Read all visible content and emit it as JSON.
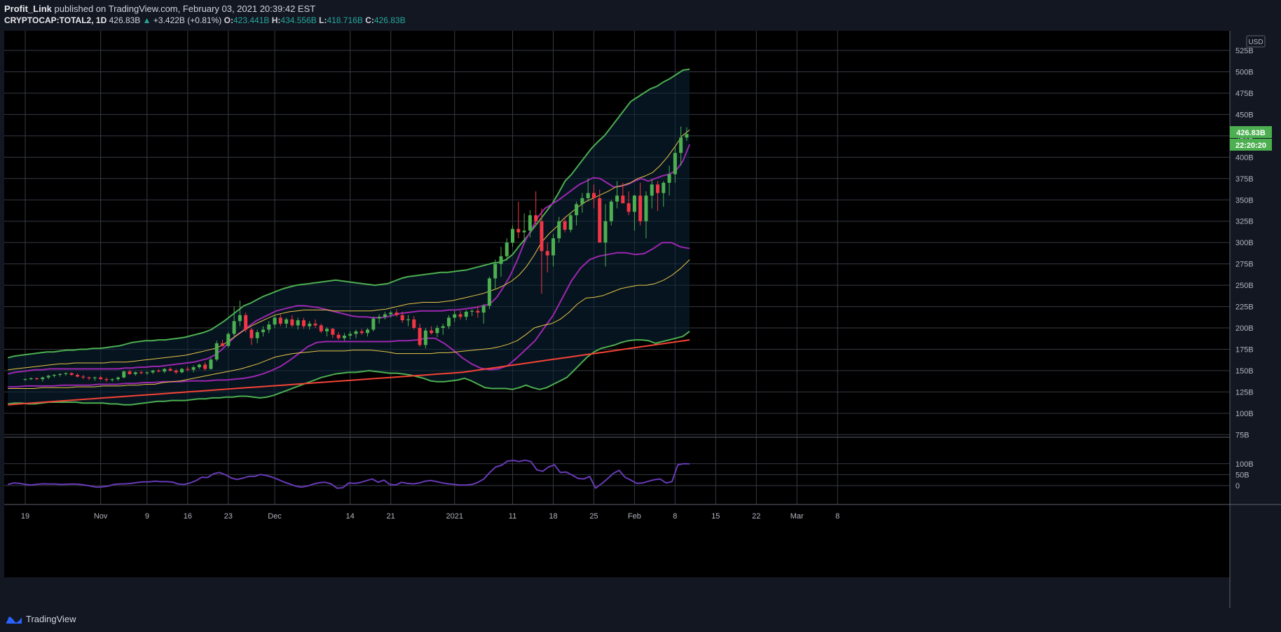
{
  "header": {
    "author": "Profit_Link",
    "published_text": "published on TradingView.com, February 03, 2021 20:39:42 EST",
    "symbol": "CRYPTOCAP:TOTAL2, 1D",
    "last": "426.83B",
    "change": "+3.422B (+0.81%)",
    "open_label": "O:",
    "open": "423.441B",
    "high_label": "H:",
    "high": "434.556B",
    "low_label": "L:",
    "low": "418.716B",
    "close_label": "C:",
    "close": "426.83B"
  },
  "currency_badge": "USD",
  "price_label": "426.83B",
  "countdown_label": "22:20:20",
  "footer": {
    "brand": "TradingView",
    "logo_icon": "tradingview-logo-icon"
  },
  "colors": {
    "bg": "#000000",
    "grid": "#363a45",
    "up": "#4caf50",
    "down": "#f23645",
    "bb_outer": "#4caf50",
    "bb_mid": "#9c27b0",
    "bb_inner": "#e8c547",
    "ma_long": "#f44336",
    "oscillator": "#673ab7",
    "tag": "#4caf50"
  },
  "chart_data": {
    "type": "candlestick",
    "y_axis": {
      "ticks": [
        "525B",
        "500B",
        "475B",
        "450B",
        "425B",
        "400B",
        "375B",
        "350B",
        "325B",
        "300B",
        "275B",
        "250B",
        "225B",
        "200B",
        "175B",
        "150B",
        "125B",
        "100B",
        "75B"
      ],
      "range": [
        72,
        548
      ]
    },
    "x_axis": {
      "ticks": [
        {
          "label": "19",
          "day": 0
        },
        {
          "label": "Nov",
          "day": 13
        },
        {
          "label": "9",
          "day": 21
        },
        {
          "label": "16",
          "day": 28
        },
        {
          "label": "23",
          "day": 35
        },
        {
          "label": "Dec",
          "day": 43
        },
        {
          "label": "14",
          "day": 56
        },
        {
          "label": "21",
          "day": 63
        },
        {
          "label": "2021",
          "day": 74
        },
        {
          "label": "11",
          "day": 84
        },
        {
          "label": "18",
          "day": 91
        },
        {
          "label": "25",
          "day": 98
        },
        {
          "label": "Feb",
          "day": 105
        },
        {
          "label": "8",
          "day": 112
        },
        {
          "label": "15",
          "day": 119
        },
        {
          "label": "22",
          "day": 126
        },
        {
          "label": "Mar",
          "day": 133
        },
        {
          "label": "8",
          "day": 140
        }
      ]
    },
    "candles": [
      [
        140,
        141,
        138,
        140
      ],
      [
        140,
        142,
        139,
        141
      ],
      [
        141,
        142,
        139,
        140
      ],
      [
        140,
        143,
        137,
        142
      ],
      [
        142,
        145,
        140,
        144
      ],
      [
        144,
        146,
        142,
        145
      ],
      [
        145,
        147,
        143,
        146
      ],
      [
        146,
        148,
        144,
        147
      ],
      [
        147,
        148,
        144,
        145
      ],
      [
        145,
        147,
        142,
        143
      ],
      [
        143,
        145,
        140,
        142
      ],
      [
        142,
        143,
        139,
        141
      ],
      [
        141,
        143,
        138,
        142
      ],
      [
        142,
        144,
        139,
        140
      ],
      [
        140,
        142,
        137,
        139
      ],
      [
        139,
        141,
        137,
        140
      ],
      [
        140,
        143,
        138,
        142
      ],
      [
        142,
        150,
        141,
        149
      ],
      [
        149,
        151,
        145,
        146
      ],
      [
        146,
        149,
        144,
        148
      ],
      [
        148,
        150,
        146,
        147
      ],
      [
        147,
        149,
        145,
        148
      ],
      [
        148,
        151,
        146,
        150
      ],
      [
        150,
        152,
        148,
        149
      ],
      [
        149,
        153,
        147,
        152
      ],
      [
        152,
        154,
        149,
        150
      ],
      [
        150,
        152,
        146,
        148
      ],
      [
        148,
        153,
        147,
        152
      ],
      [
        152,
        155,
        149,
        151
      ],
      [
        151,
        156,
        148,
        154
      ],
      [
        154,
        158,
        152,
        157
      ],
      [
        157,
        160,
        150,
        152
      ],
      [
        152,
        165,
        151,
        163
      ],
      [
        163,
        185,
        161,
        182
      ],
      [
        182,
        186,
        178,
        179
      ],
      [
        179,
        195,
        177,
        193
      ],
      [
        193,
        225,
        188,
        208
      ],
      [
        208,
        232,
        202,
        215
      ],
      [
        215,
        218,
        195,
        198
      ],
      [
        198,
        200,
        180,
        188
      ],
      [
        188,
        198,
        182,
        195
      ],
      [
        195,
        202,
        190,
        198
      ],
      [
        198,
        208,
        194,
        204
      ],
      [
        204,
        215,
        200,
        212
      ],
      [
        212,
        216,
        202,
        205
      ],
      [
        205,
        212,
        200,
        210
      ],
      [
        210,
        215,
        201,
        203
      ],
      [
        203,
        212,
        198,
        209
      ],
      [
        209,
        212,
        199,
        202
      ],
      [
        202,
        208,
        198,
        205
      ],
      [
        205,
        210,
        200,
        203
      ],
      [
        203,
        205,
        194,
        196
      ],
      [
        196,
        201,
        190,
        199
      ],
      [
        199,
        200,
        188,
        192
      ],
      [
        192,
        195,
        186,
        188
      ],
      [
        188,
        194,
        185,
        191
      ],
      [
        191,
        196,
        187,
        193
      ],
      [
        193,
        198,
        188,
        196
      ],
      [
        196,
        199,
        192,
        194
      ],
      [
        194,
        200,
        190,
        198
      ],
      [
        198,
        213,
        196,
        211
      ],
      [
        211,
        216,
        205,
        213
      ],
      [
        213,
        219,
        210,
        216
      ],
      [
        216,
        220,
        212,
        218
      ],
      [
        218,
        222,
        213,
        215
      ],
      [
        215,
        219,
        206,
        209
      ],
      [
        209,
        215,
        202,
        210
      ],
      [
        210,
        214,
        198,
        200
      ],
      [
        200,
        205,
        178,
        180
      ],
      [
        180,
        200,
        176,
        197
      ],
      [
        197,
        202,
        192,
        194
      ],
      [
        194,
        203,
        189,
        200
      ],
      [
        200,
        205,
        192,
        202
      ],
      [
        202,
        215,
        199,
        212
      ],
      [
        212,
        220,
        207,
        216
      ],
      [
        216,
        220,
        210,
        213
      ],
      [
        213,
        221,
        209,
        219
      ],
      [
        219,
        222,
        214,
        220
      ],
      [
        220,
        226,
        212,
        218
      ],
      [
        218,
        228,
        205,
        226
      ],
      [
        226,
        260,
        222,
        258
      ],
      [
        258,
        280,
        245,
        275
      ],
      [
        275,
        295,
        260,
        284
      ],
      [
        284,
        305,
        279,
        300
      ],
      [
        300,
        320,
        295,
        316
      ],
      [
        316,
        348,
        305,
        312
      ],
      [
        312,
        334,
        300,
        314
      ],
      [
        314,
        338,
        306,
        332
      ],
      [
        332,
        360,
        320,
        325
      ],
      [
        325,
        340,
        240,
        290
      ],
      [
        290,
        300,
        265,
        285
      ],
      [
        285,
        310,
        272,
        305
      ],
      [
        305,
        330,
        300,
        325
      ],
      [
        325,
        330,
        312,
        315
      ],
      [
        315,
        335,
        312,
        332
      ],
      [
        332,
        348,
        320,
        345
      ],
      [
        345,
        358,
        335,
        352
      ],
      [
        352,
        375,
        348,
        358
      ],
      [
        358,
        368,
        340,
        352
      ],
      [
        352,
        362,
        300,
        300
      ],
      [
        300,
        345,
        272,
        325
      ],
      [
        325,
        350,
        320,
        348
      ],
      [
        348,
        372,
        340,
        355
      ],
      [
        355,
        370,
        346,
        346
      ],
      [
        346,
        360,
        332,
        336
      ],
      [
        336,
        356,
        314,
        355
      ],
      [
        355,
        370,
        320,
        325
      ],
      [
        325,
        360,
        305,
        355
      ],
      [
        355,
        374,
        340,
        368
      ],
      [
        368,
        372,
        337,
        358
      ],
      [
        358,
        372,
        342,
        370
      ],
      [
        370,
        390,
        355,
        380
      ],
      [
        380,
        412,
        370,
        405
      ],
      [
        405,
        436,
        390,
        423
      ],
      [
        423,
        435,
        419,
        427
      ]
    ],
    "bb_outer_upper": [
      165,
      167,
      168,
      169,
      170,
      171,
      172,
      172,
      173,
      174,
      174,
      175,
      175,
      176,
      176,
      177,
      178,
      179,
      181,
      183,
      184,
      185,
      185,
      186,
      186,
      187,
      188,
      189,
      191,
      193,
      195,
      198,
      203,
      208,
      214,
      220,
      226,
      229,
      233,
      237,
      240,
      243,
      246,
      248,
      250,
      251,
      252,
      253,
      254,
      255,
      256,
      255,
      254,
      253,
      252,
      251,
      250,
      251,
      252,
      255,
      258,
      260,
      261,
      262,
      263,
      264,
      265,
      265,
      266,
      267,
      268,
      270,
      272,
      274,
      276,
      277,
      280,
      286,
      296,
      305,
      315,
      325,
      335,
      345,
      358,
      372,
      380,
      390,
      400,
      410,
      418,
      425,
      435,
      445,
      455,
      465,
      470,
      475,
      480,
      483,
      488,
      492,
      497,
      502,
      503
    ],
    "bb_outer_lower": [
      111,
      112,
      112,
      111,
      111,
      112,
      113,
      113,
      113,
      113,
      113,
      112,
      112,
      112,
      112,
      111,
      111,
      110,
      110,
      111,
      112,
      113,
      114,
      114,
      115,
      115,
      115,
      116,
      117,
      117,
      118,
      118,
      119,
      119,
      120,
      120,
      119,
      118,
      119,
      121,
      124,
      127,
      130,
      133,
      136,
      139,
      142,
      144,
      146,
      147,
      148,
      148,
      149,
      150,
      149,
      148,
      147,
      147,
      146,
      145,
      143,
      141,
      138,
      137,
      137,
      138,
      139,
      141,
      138,
      134,
      130,
      129,
      129,
      129,
      128,
      130,
      133,
      130,
      128,
      130,
      134,
      138,
      142,
      150,
      158,
      166,
      172,
      176,
      178,
      180,
      183,
      185,
      186,
      186,
      185,
      182,
      184,
      186,
      188,
      190,
      196
    ],
    "bb_mid_upper": [
      146,
      148,
      149,
      150,
      151,
      151,
      152,
      152,
      152,
      152,
      152,
      152,
      152,
      152,
      152,
      152,
      152,
      153,
      153,
      154,
      154,
      155,
      155,
      156,
      157,
      158,
      159,
      160,
      162,
      164,
      168,
      174,
      182,
      190,
      196,
      202,
      208,
      212,
      216,
      220,
      222,
      224,
      226,
      226,
      225,
      224,
      222,
      220,
      218,
      216,
      214,
      213,
      213,
      212,
      212,
      213,
      215,
      217,
      218,
      219,
      220,
      220,
      220,
      220,
      221,
      221,
      222,
      223,
      224,
      226,
      228,
      236,
      248,
      262,
      280,
      300,
      315,
      330,
      340,
      345,
      350,
      356,
      362,
      368,
      372,
      376,
      375,
      370,
      365,
      366,
      368,
      372,
      375,
      372,
      375,
      378,
      380,
      384,
      395,
      415
    ],
    "bb_mid_lower": [
      131,
      131,
      132,
      132,
      132,
      132,
      133,
      133,
      133,
      133,
      134,
      134,
      134,
      135,
      135,
      136,
      136,
      137,
      137,
      137,
      138,
      138,
      138,
      139,
      139,
      140,
      141,
      143,
      146,
      150,
      155,
      162,
      170,
      178,
      183,
      184,
      184,
      184,
      184,
      184,
      184,
      184,
      184,
      185,
      185,
      186,
      188,
      188,
      182,
      174,
      165,
      158,
      153,
      151,
      152,
      156,
      165,
      175,
      185,
      200,
      215,
      235,
      255,
      270,
      280,
      284,
      286,
      288,
      288,
      286,
      287,
      293,
      300,
      300,
      295,
      293
    ],
    "bb_inner_upper": [
      151,
      152,
      153,
      154,
      155,
      156,
      157,
      158,
      158,
      159,
      159,
      159,
      159,
      159,
      160,
      160,
      160,
      161,
      162,
      163,
      164,
      165,
      166,
      167,
      168,
      170,
      172,
      174,
      176,
      180,
      186,
      192,
      198,
      203,
      207,
      211,
      215,
      217,
      219,
      220,
      221,
      221,
      221,
      221,
      220,
      220,
      220,
      220,
      220,
      220,
      221,
      222,
      224,
      226,
      228,
      229,
      230,
      230,
      230,
      231,
      232,
      234,
      236,
      238,
      240,
      243,
      246,
      250,
      255,
      262,
      272,
      285,
      300,
      310,
      318,
      328,
      335,
      342,
      348,
      352,
      356,
      360,
      365,
      367,
      370,
      375,
      378,
      382,
      390,
      400,
      412,
      425,
      432
    ],
    "bb_inner_lower": [
      129,
      129,
      129,
      129,
      130,
      130,
      130,
      130,
      131,
      131,
      131,
      132,
      132,
      132,
      133,
      133,
      134,
      134,
      136,
      137,
      138,
      140,
      142,
      144,
      146,
      148,
      150,
      152,
      155,
      158,
      162,
      166,
      168,
      170,
      171,
      172,
      173,
      173,
      173,
      173,
      174,
      174,
      174,
      173,
      172,
      170,
      170,
      170,
      170,
      170,
      171,
      171,
      172,
      173,
      174,
      175,
      176,
      178,
      181,
      185,
      192,
      200,
      203,
      205,
      210,
      218,
      228,
      235,
      236,
      238,
      242,
      246,
      248,
      250,
      250,
      252,
      256,
      262,
      270,
      280
    ],
    "ma_long": [
      110,
      111,
      112,
      113,
      114,
      115,
      116,
      117,
      118,
      119,
      120,
      121,
      122,
      123,
      124,
      125,
      126,
      127,
      128,
      129,
      130,
      131,
      132,
      133,
      134,
      135,
      136,
      137,
      138,
      139,
      140,
      141,
      142,
      143,
      144,
      145,
      146,
      147,
      148,
      150,
      152,
      154,
      156,
      158,
      160,
      162,
      164,
      166,
      168,
      170,
      172,
      174,
      176,
      178,
      180,
      182,
      184,
      186
    ],
    "oscillator": [
      5,
      12,
      10,
      5,
      3,
      6,
      8,
      7,
      7,
      5,
      6,
      7,
      6,
      3,
      -2,
      -7,
      -6,
      -3,
      5,
      7,
      8,
      10,
      14,
      17,
      17,
      20,
      18,
      18,
      16,
      7,
      5,
      12,
      22,
      38,
      37,
      54,
      60,
      50,
      35,
      28,
      34,
      42,
      42,
      51,
      46,
      38,
      28,
      16,
      7,
      -3,
      -7,
      -2,
      7,
      13,
      15,
      8,
      -12,
      -10,
      12,
      10,
      14,
      22,
      30,
      15,
      25,
      5,
      3,
      15,
      10,
      8,
      12,
      20,
      23,
      18,
      12,
      8,
      5,
      2,
      3,
      5,
      15,
      30,
      60,
      85,
      93,
      112,
      115,
      110,
      116,
      110,
      72,
      65,
      85,
      95,
      60,
      62,
      48,
      33,
      30,
      42,
      -12,
      8,
      30,
      55,
      70,
      38,
      25,
      10,
      12,
      20,
      27,
      30,
      12,
      18,
      95,
      100,
      99
    ]
  }
}
